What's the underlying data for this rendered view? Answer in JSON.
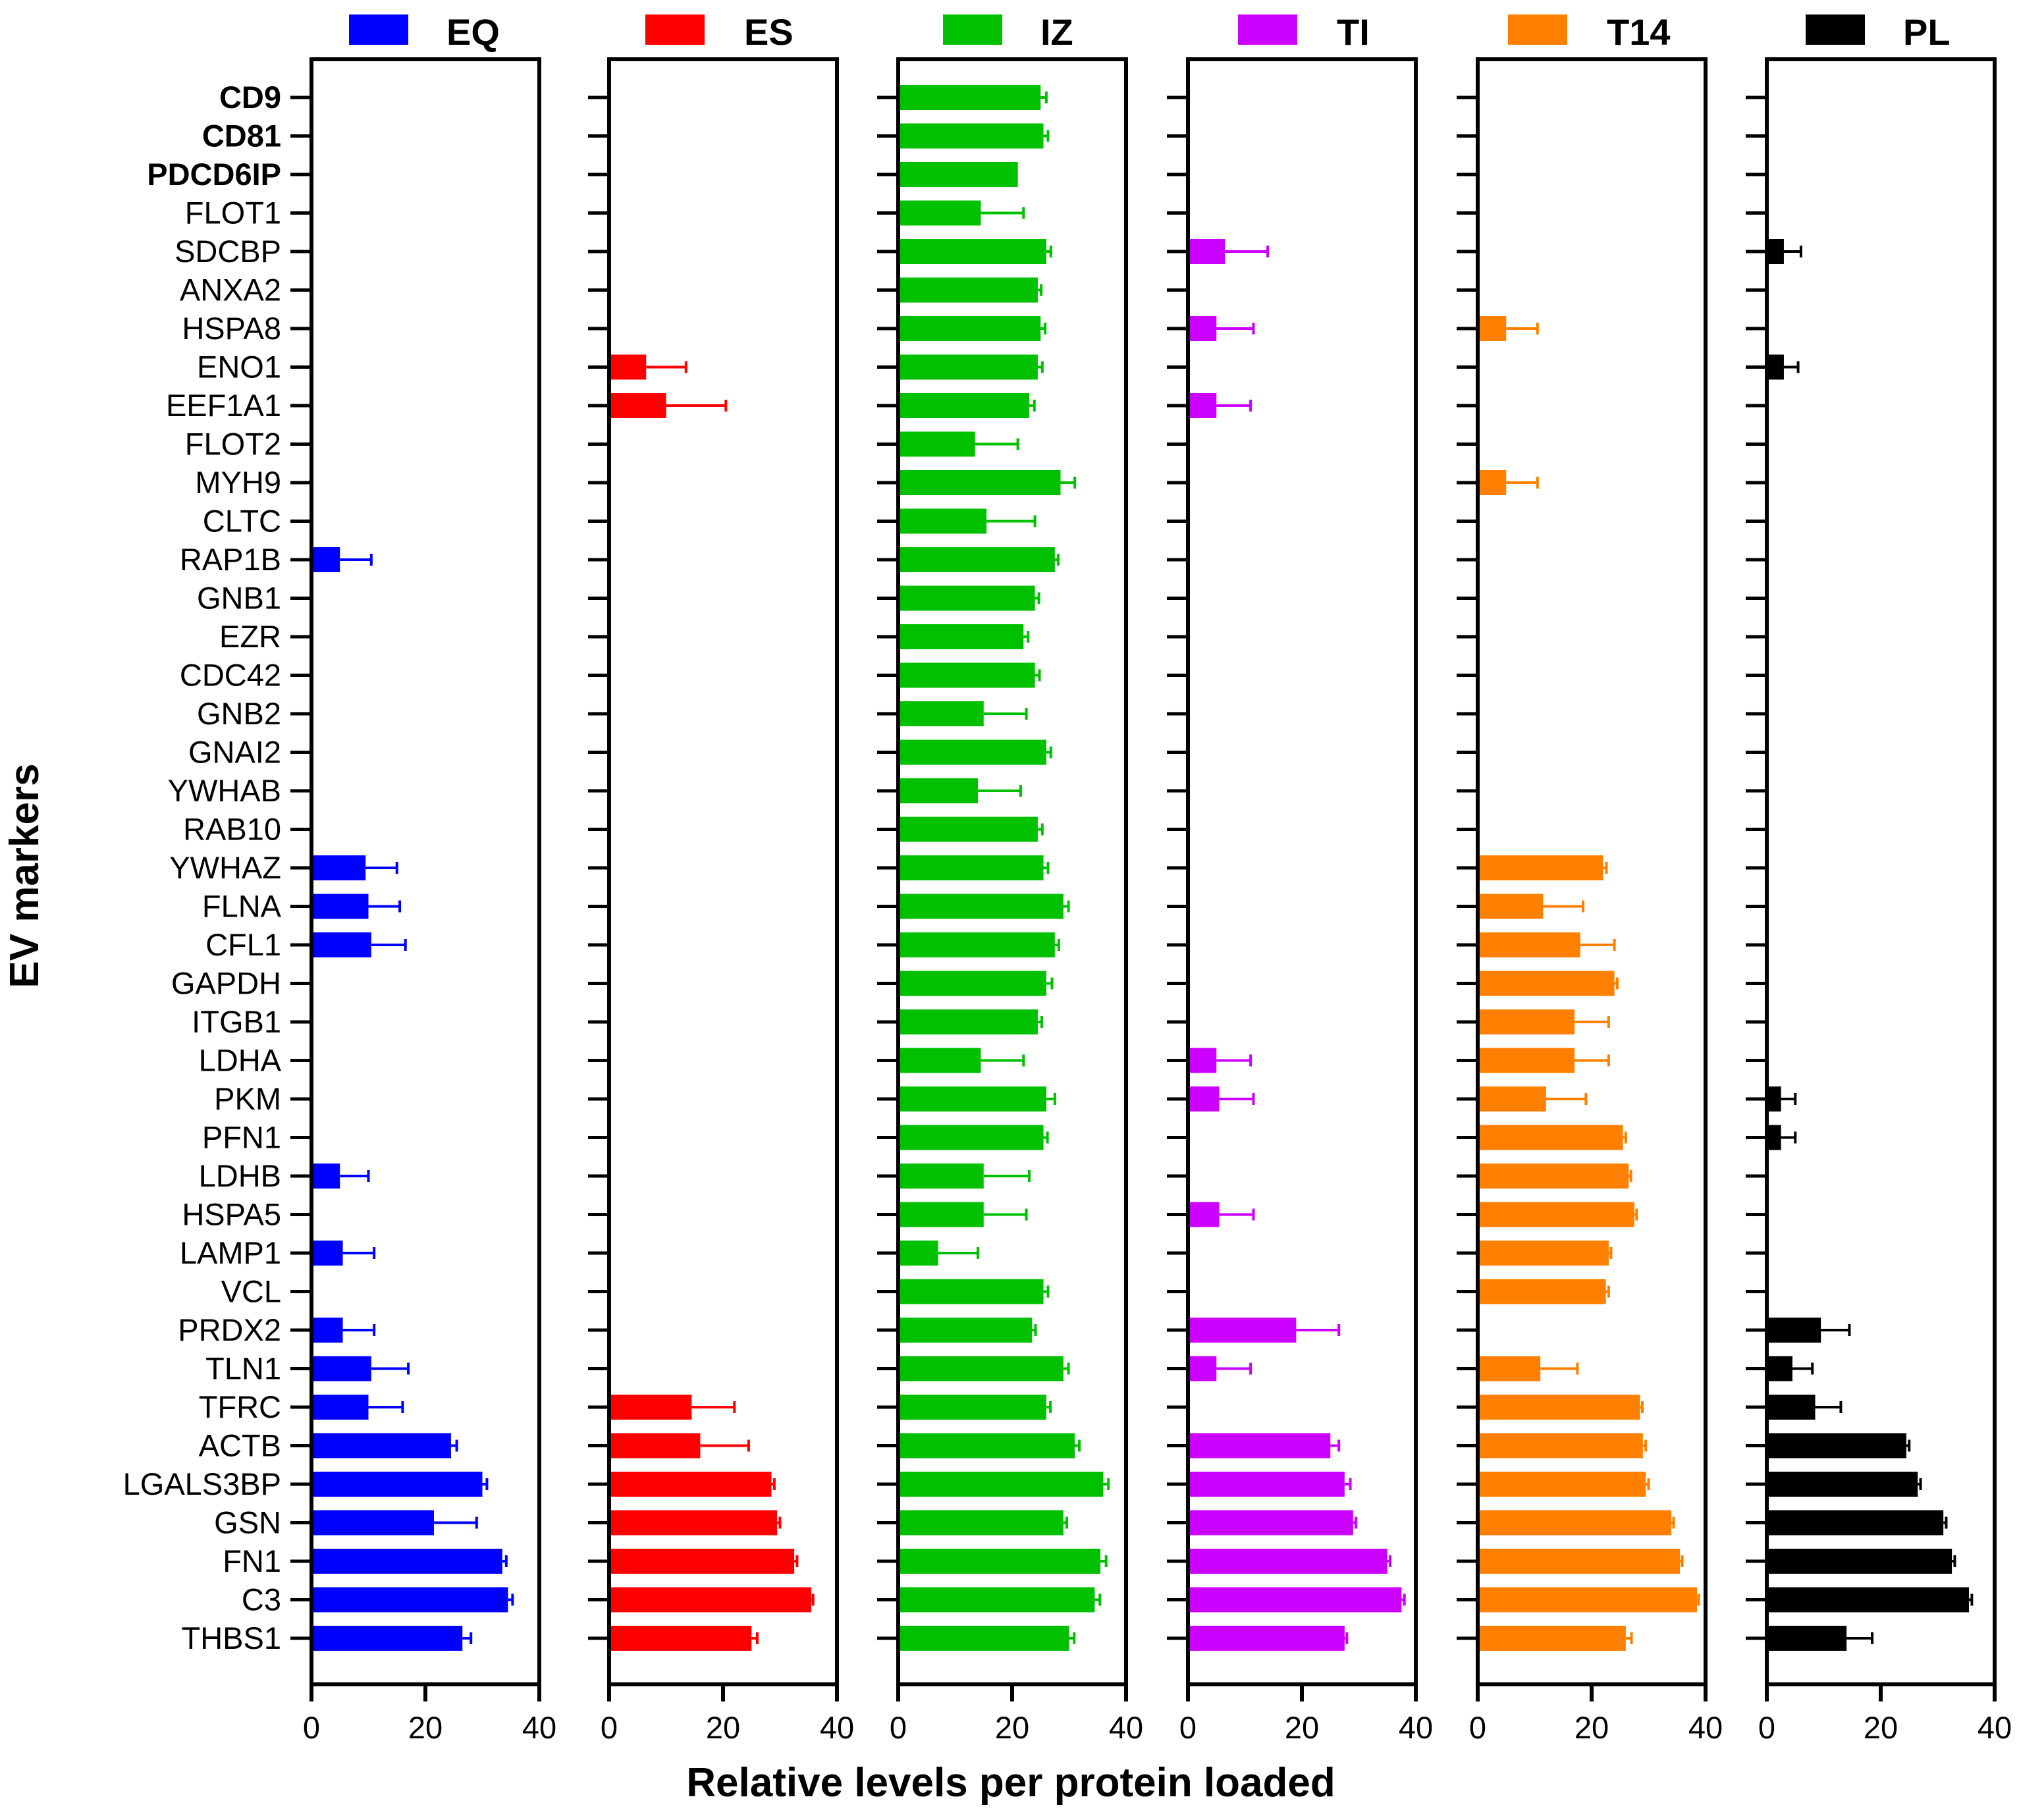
{
  "chart_data": {
    "type": "bar",
    "orientation": "horizontal",
    "xlabel": "Relative levels per protein loaded",
    "ylabel": "EV markers",
    "xlim": [
      0,
      40
    ],
    "xticks": [
      0,
      20,
      40
    ],
    "tick_labels": [
      "0",
      "20",
      "40"
    ],
    "grid": false,
    "legend_position": "top",
    "categories": [
      "CD9",
      "CD81",
      "PDCD6IP",
      "FLOT1",
      "SDCBP",
      "ANXA2",
      "HSPA8",
      "ENO1",
      "EEF1A1",
      "FLOT2",
      "MYH9",
      "CLTC",
      "RAP1B",
      "GNB1",
      "EZR",
      "CDC42",
      "GNB2",
      "GNAI2",
      "YWHAB",
      "RAB10",
      "YWHAZ",
      "FLNA",
      "CFL1",
      "GAPDH",
      "ITGB1",
      "LDHA",
      "PKM",
      "PFN1",
      "LDHB",
      "HSPA5",
      "LAMP1",
      "VCL",
      "PRDX2",
      "TLN1",
      "TFRC",
      "ACTB",
      "LGALS3BP",
      "GSN",
      "FN1",
      "C3",
      "THBS1"
    ],
    "bold_categories": [
      "CD9",
      "CD81",
      "PDCD6IP"
    ],
    "series": [
      {
        "name": "EQ",
        "color": "#0000ff",
        "values": [
          0,
          0,
          0,
          0,
          0,
          0,
          0,
          0,
          0,
          0,
          0,
          0,
          5,
          0,
          0,
          0,
          0,
          0,
          0,
          0,
          9.5,
          10,
          10.5,
          0,
          0,
          0,
          0,
          0,
          5,
          0,
          5.5,
          0,
          5.5,
          10.5,
          10,
          24.5,
          30,
          21.5,
          33.5,
          34.5,
          26.5
        ],
        "errors": [
          0,
          0,
          0,
          0,
          0,
          0,
          0,
          0,
          0,
          0,
          0,
          0,
          5.5,
          0,
          0,
          0,
          0,
          0,
          0,
          0,
          5.5,
          5.5,
          6,
          0,
          0,
          0,
          0,
          0,
          5,
          0,
          5.5,
          0,
          5.5,
          6.5,
          6,
          1,
          0.8,
          7.5,
          0.7,
          0.8,
          1.5
        ]
      },
      {
        "name": "ES",
        "color": "#ff0000",
        "values": [
          0,
          0,
          0,
          0,
          0,
          0,
          0,
          6.5,
          10,
          0,
          0,
          0,
          0,
          0,
          0,
          0,
          0,
          0,
          0,
          0,
          0,
          0,
          0,
          0,
          0,
          0,
          0,
          0,
          0,
          0,
          0,
          0,
          0,
          0,
          14.5,
          16,
          28.5,
          29.5,
          32.5,
          35.5,
          25
        ],
        "errors": [
          0,
          0,
          0,
          0,
          0,
          0,
          0,
          7,
          10.5,
          0,
          0,
          0,
          0,
          0,
          0,
          0,
          0,
          0,
          0,
          0,
          0,
          0,
          0,
          0,
          0,
          0,
          0,
          0,
          0,
          0,
          0,
          0,
          0,
          0,
          7.5,
          8.5,
          0.5,
          0.5,
          0.5,
          0.3,
          1
        ]
      },
      {
        "name": "IZ",
        "color": "#00c000",
        "values": [
          25,
          25.5,
          21,
          14.5,
          26,
          24.5,
          25,
          24.5,
          23,
          13.5,
          28.5,
          15.5,
          27.5,
          24,
          22,
          24,
          15,
          26,
          14,
          24.5,
          25.5,
          29,
          27.5,
          26,
          24.5,
          14.5,
          26,
          25.5,
          15,
          15,
          7,
          25.5,
          23.5,
          29,
          26,
          31,
          36,
          29,
          35.5,
          34.5,
          30
        ],
        "errors": [
          1,
          0.8,
          0,
          7.5,
          0.8,
          0.6,
          0.8,
          0.8,
          0.9,
          7.5,
          2.5,
          8.5,
          0.6,
          0.7,
          0.8,
          0.8,
          7.5,
          0.8,
          7.5,
          0.8,
          0.8,
          0.9,
          0.7,
          1,
          0.7,
          7.5,
          1.5,
          0.7,
          8,
          7.5,
          7,
          0.8,
          0.6,
          0.9,
          0.7,
          0.8,
          0.9,
          0.6,
          1,
          0.9,
          0.9
        ]
      },
      {
        "name": "TI",
        "color": "#cc00ff",
        "values": [
          0,
          0,
          0,
          0,
          6.5,
          0,
          5,
          0,
          5,
          0,
          0,
          0,
          0,
          0,
          0,
          0,
          0,
          0,
          0,
          0,
          0,
          0,
          0,
          0,
          0,
          5,
          5.5,
          0,
          0,
          5.5,
          0,
          0,
          19,
          5,
          0,
          25,
          27.5,
          29,
          35,
          37.5,
          27.5
        ],
        "errors": [
          0,
          0,
          0,
          0,
          7.5,
          0,
          6.5,
          0,
          6,
          0,
          0,
          0,
          0,
          0,
          0,
          0,
          0,
          0,
          0,
          0,
          0,
          0,
          0,
          0,
          0,
          6,
          6,
          0,
          0,
          6,
          0,
          0,
          7.5,
          6,
          0,
          1.5,
          1,
          0.5,
          0.5,
          0.5,
          0.4
        ]
      },
      {
        "name": "T14",
        "color": "#ff8000",
        "values": [
          0,
          0,
          0,
          0,
          0,
          0,
          5,
          0,
          0,
          0,
          5,
          0,
          0,
          0,
          0,
          0,
          0,
          0,
          0,
          0,
          22,
          11.5,
          18,
          24,
          17,
          17,
          12,
          25.5,
          26.5,
          27.5,
          23,
          22.5,
          0,
          11,
          28.5,
          29,
          29.5,
          34,
          35.5,
          38.5,
          26
        ],
        "errors": [
          0,
          0,
          0,
          0,
          0,
          0,
          5.5,
          0,
          0,
          0,
          5.5,
          0,
          0,
          0,
          0,
          0,
          0,
          0,
          0,
          0,
          0.6,
          7,
          6,
          0.5,
          6,
          6,
          7,
          0.5,
          0.4,
          0.4,
          0.4,
          0.5,
          0,
          6.5,
          0.4,
          0.5,
          0.5,
          0.4,
          0.4,
          0.3,
          1
        ]
      },
      {
        "name": "PL",
        "color": "#000000",
        "values": [
          0,
          0,
          0,
          0,
          3,
          0,
          0,
          3,
          0,
          0,
          0,
          0,
          0,
          0,
          0,
          0,
          0,
          0,
          0,
          0,
          0,
          0,
          0,
          0,
          0,
          0,
          2.5,
          2.5,
          0,
          0,
          0,
          0,
          9.5,
          4.5,
          8.5,
          24.5,
          26.5,
          31,
          32.5,
          35.5,
          14
        ],
        "errors": [
          0,
          0,
          0,
          0,
          3,
          0,
          0,
          2.5,
          0,
          0,
          0,
          0,
          0,
          0,
          0,
          0,
          0,
          0,
          0,
          0,
          0,
          0,
          0,
          0,
          0,
          0,
          2.5,
          2.5,
          0,
          0,
          0,
          0,
          5,
          3.5,
          4.5,
          0.5,
          0.5,
          0.5,
          0.5,
          0.5,
          4.5
        ]
      }
    ]
  }
}
